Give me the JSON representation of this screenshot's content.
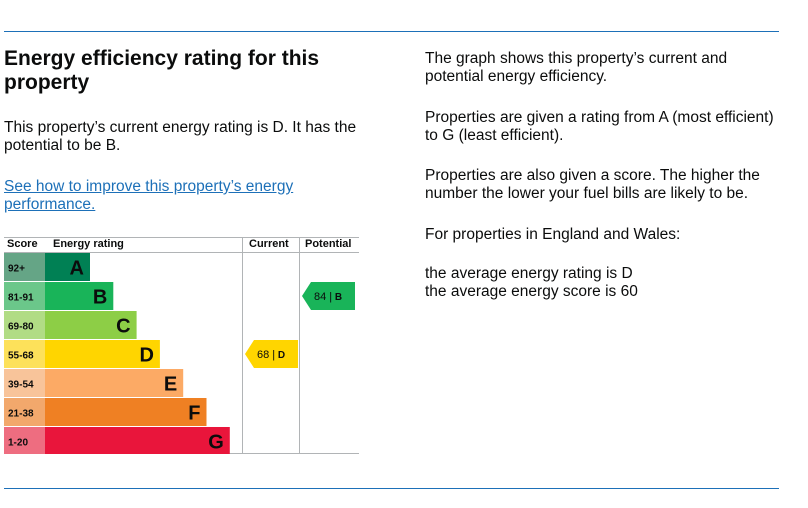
{
  "title": "Energy efficiency rating for this property",
  "current_text": "This property’s current energy rating is D. It has the potential to be B.",
  "improve_link": "See how to improve this property’s energy performance.",
  "info": [
    "The graph shows this property’s current and potential energy efficiency.",
    "Properties are given a rating from A (most efficient) to G (least efficient).",
    "Properties are also given a score. The higher the number the lower your fuel bills are likely to be.",
    "For properties in England and Wales:",
    "the average energy rating is D",
    "the average energy score is 60"
  ],
  "chart_data": {
    "type": "bar",
    "headers": {
      "score": "Score",
      "rating": "Energy rating",
      "current": "Current",
      "potential": "Potential"
    },
    "bands": [
      {
        "range": "92+",
        "letter": "A",
        "color": "#008054",
        "score_bg": "#65a586"
      },
      {
        "range": "81-91",
        "letter": "B",
        "color": "#19b459",
        "score_bg": "#6bc78a"
      },
      {
        "range": "69-80",
        "letter": "C",
        "color": "#8dce46",
        "score_bg": "#b1dc85"
      },
      {
        "range": "55-68",
        "letter": "D",
        "color": "#ffd500",
        "score_bg": "#fde15a"
      },
      {
        "range": "39-54",
        "letter": "E",
        "color": "#fcaa65",
        "score_bg": "#f8c49a"
      },
      {
        "range": "21-38",
        "letter": "F",
        "color": "#ef8023",
        "score_bg": "#f2a86c"
      },
      {
        "range": "1-20",
        "letter": "G",
        "color": "#e9153b",
        "score_bg": "#ee6d80"
      }
    ],
    "current": {
      "score": 68,
      "letter": "D",
      "label": "68 | D",
      "color": "#ffd500"
    },
    "potential": {
      "score": 84,
      "letter": "B",
      "label": "84 | B",
      "color": "#19b459"
    }
  }
}
